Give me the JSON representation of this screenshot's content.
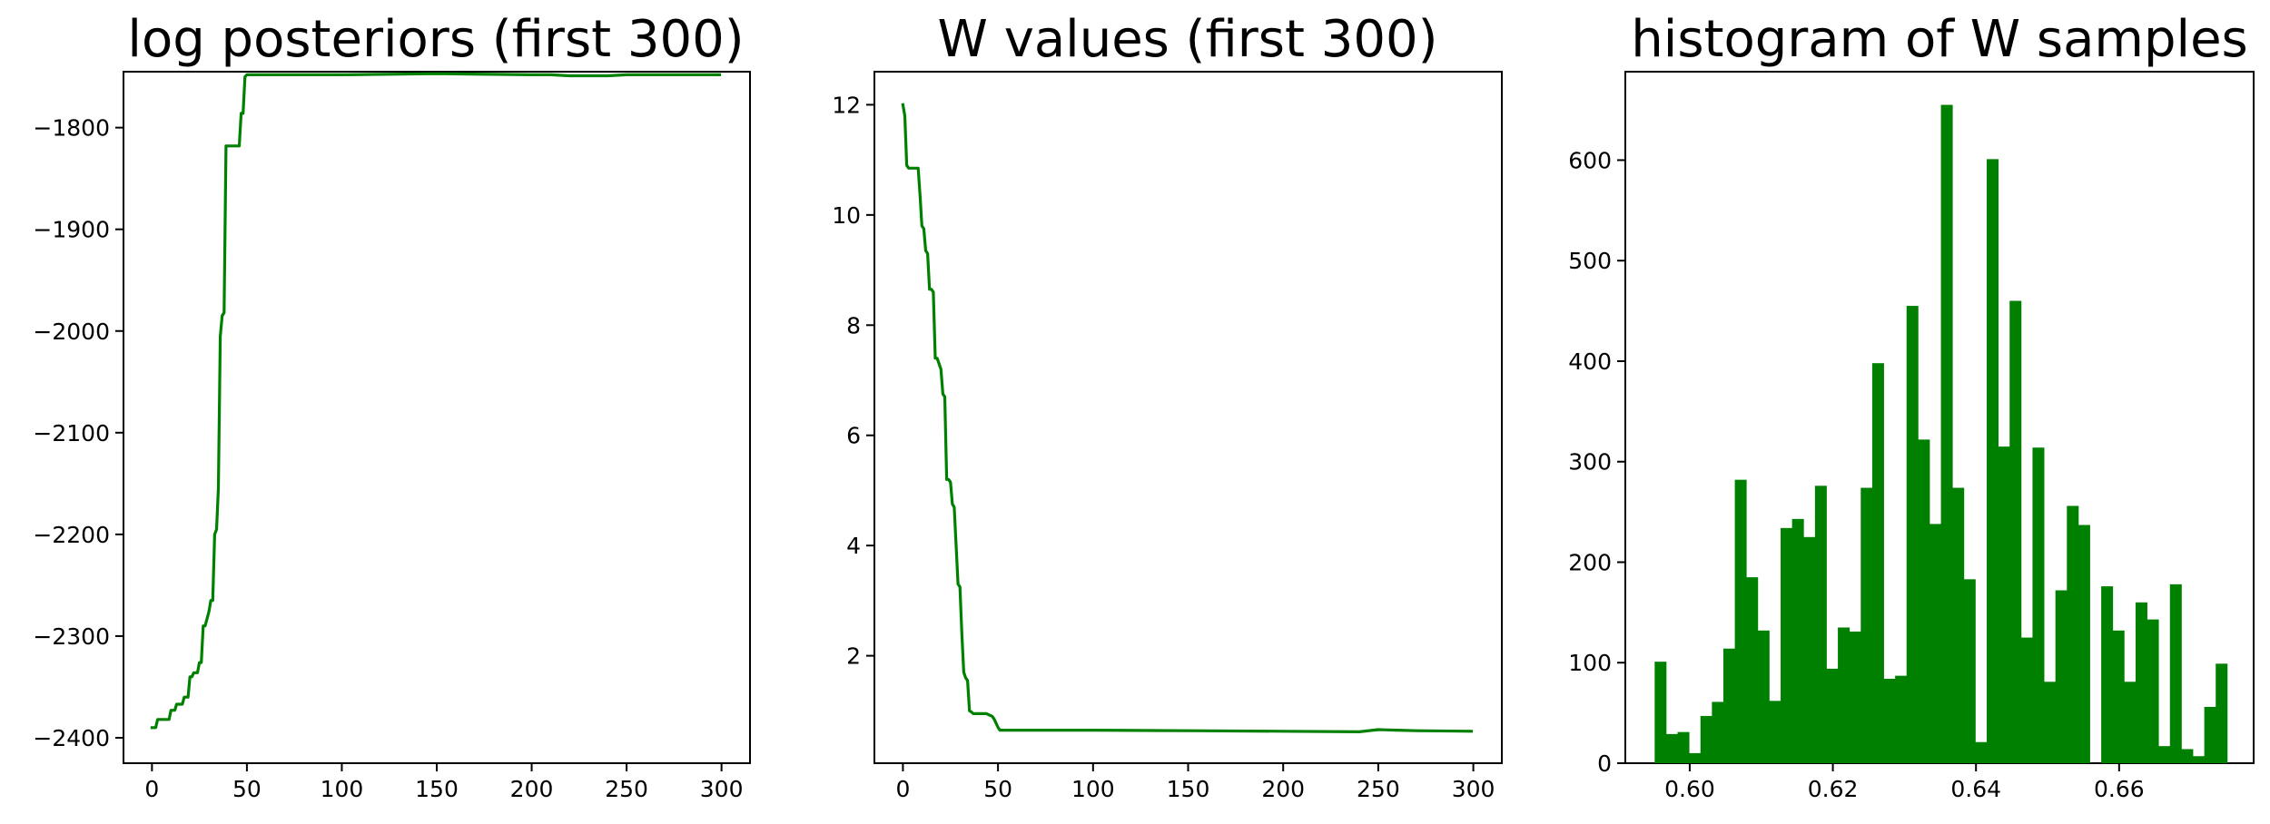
{
  "colors": {
    "series": "#008000",
    "axes": "#000000",
    "background": "#ffffff"
  },
  "chart_data": [
    {
      "type": "line",
      "title": "log posteriors (first 300)",
      "xlabel": "",
      "ylabel": "",
      "xlim": [
        -15,
        315
      ],
      "ylim": [
        -2425,
        -1745
      ],
      "xticks": [
        0,
        50,
        100,
        150,
        200,
        250,
        300
      ],
      "yticks": [
        -2400,
        -2300,
        -2200,
        -2100,
        -2000,
        -1900,
        -1800
      ],
      "grid": false,
      "series": [
        {
          "x": [
            0,
            2,
            3,
            9,
            10,
            12,
            13,
            16,
            17,
            19,
            20,
            21,
            22,
            24,
            25,
            26,
            27,
            28,
            30,
            31,
            32,
            33,
            34,
            35,
            36,
            37,
            38,
            39,
            40,
            46,
            47,
            48,
            49,
            50,
            51,
            100,
            150,
            200,
            210,
            220,
            230,
            240,
            250,
            260,
            270,
            280,
            290,
            299
          ],
          "y": [
            -2390,
            -2390,
            -2382,
            -2382,
            -2373,
            -2373,
            -2367,
            -2367,
            -2360,
            -2360,
            -2340,
            -2340,
            -2336,
            -2336,
            -2326,
            -2326,
            -2290,
            -2290,
            -2276,
            -2265,
            -2265,
            -2200,
            -2195,
            -2155,
            -2005,
            -1985,
            -1982,
            -1818,
            -1818,
            -1818,
            -1786,
            -1786,
            -1750,
            -1748,
            -1748,
            -1748,
            -1747,
            -1748,
            -1748,
            -1749,
            -1749,
            -1749,
            -1748,
            -1748,
            -1748,
            -1748,
            -1748,
            -1748
          ]
        }
      ]
    },
    {
      "type": "line",
      "title": "W values (first 300)",
      "xlabel": "",
      "ylabel": "",
      "xlim": [
        -15,
        315
      ],
      "ylim": [
        0.05,
        12.6
      ],
      "xticks": [
        0,
        50,
        100,
        150,
        200,
        250,
        300
      ],
      "yticks": [
        2,
        4,
        6,
        8,
        10,
        12
      ],
      "grid": false,
      "series": [
        {
          "x": [
            0,
            1,
            2,
            3,
            8,
            9,
            10,
            11,
            12,
            13,
            14,
            15,
            16,
            17,
            18,
            19,
            20,
            21,
            22,
            23,
            24,
            25,
            26,
            27,
            28,
            29,
            30,
            31,
            32,
            33,
            34,
            35,
            36,
            37,
            38,
            40,
            44,
            47,
            48,
            50,
            51,
            100,
            150,
            200,
            240,
            250,
            260,
            270,
            299
          ],
          "y": [
            12.0,
            11.8,
            10.9,
            10.85,
            10.85,
            10.35,
            9.8,
            9.75,
            9.35,
            9.3,
            8.65,
            8.65,
            8.6,
            7.4,
            7.4,
            7.3,
            7.2,
            6.75,
            6.7,
            5.2,
            5.2,
            5.15,
            4.75,
            4.7,
            4.0,
            3.3,
            3.25,
            2.4,
            1.7,
            1.6,
            1.55,
            1.0,
            0.98,
            0.95,
            0.95,
            0.95,
            0.95,
            0.9,
            0.85,
            0.7,
            0.65,
            0.65,
            0.64,
            0.63,
            0.62,
            0.66,
            0.65,
            0.64,
            0.63
          ]
        }
      ]
    },
    {
      "type": "bar",
      "title": "histogram of W samples",
      "xlabel": "",
      "ylabel": "",
      "xlim": [
        0.591,
        0.6788
      ],
      "ylim": [
        0,
        688
      ],
      "xticks": [
        0.6,
        0.62,
        0.64,
        0.66
      ],
      "xtick_labels": [
        "0.60",
        "0.62",
        "0.64",
        "0.66"
      ],
      "yticks": [
        0,
        100,
        200,
        300,
        400,
        500,
        600
      ],
      "grid": false,
      "bin_start": 0.5951,
      "bin_width": 0.0016,
      "values": [
        101,
        29,
        31,
        10,
        47,
        61,
        114,
        282,
        185,
        132,
        62,
        234,
        243,
        225,
        276,
        94,
        135,
        131,
        274,
        398,
        84,
        87,
        455,
        322,
        238,
        655,
        274,
        183,
        21,
        601,
        315,
        460,
        125,
        314,
        81,
        172,
        256,
        237,
        0,
        176,
        132,
        81,
        160,
        143,
        17,
        178,
        14,
        7,
        56,
        99
      ]
    }
  ]
}
